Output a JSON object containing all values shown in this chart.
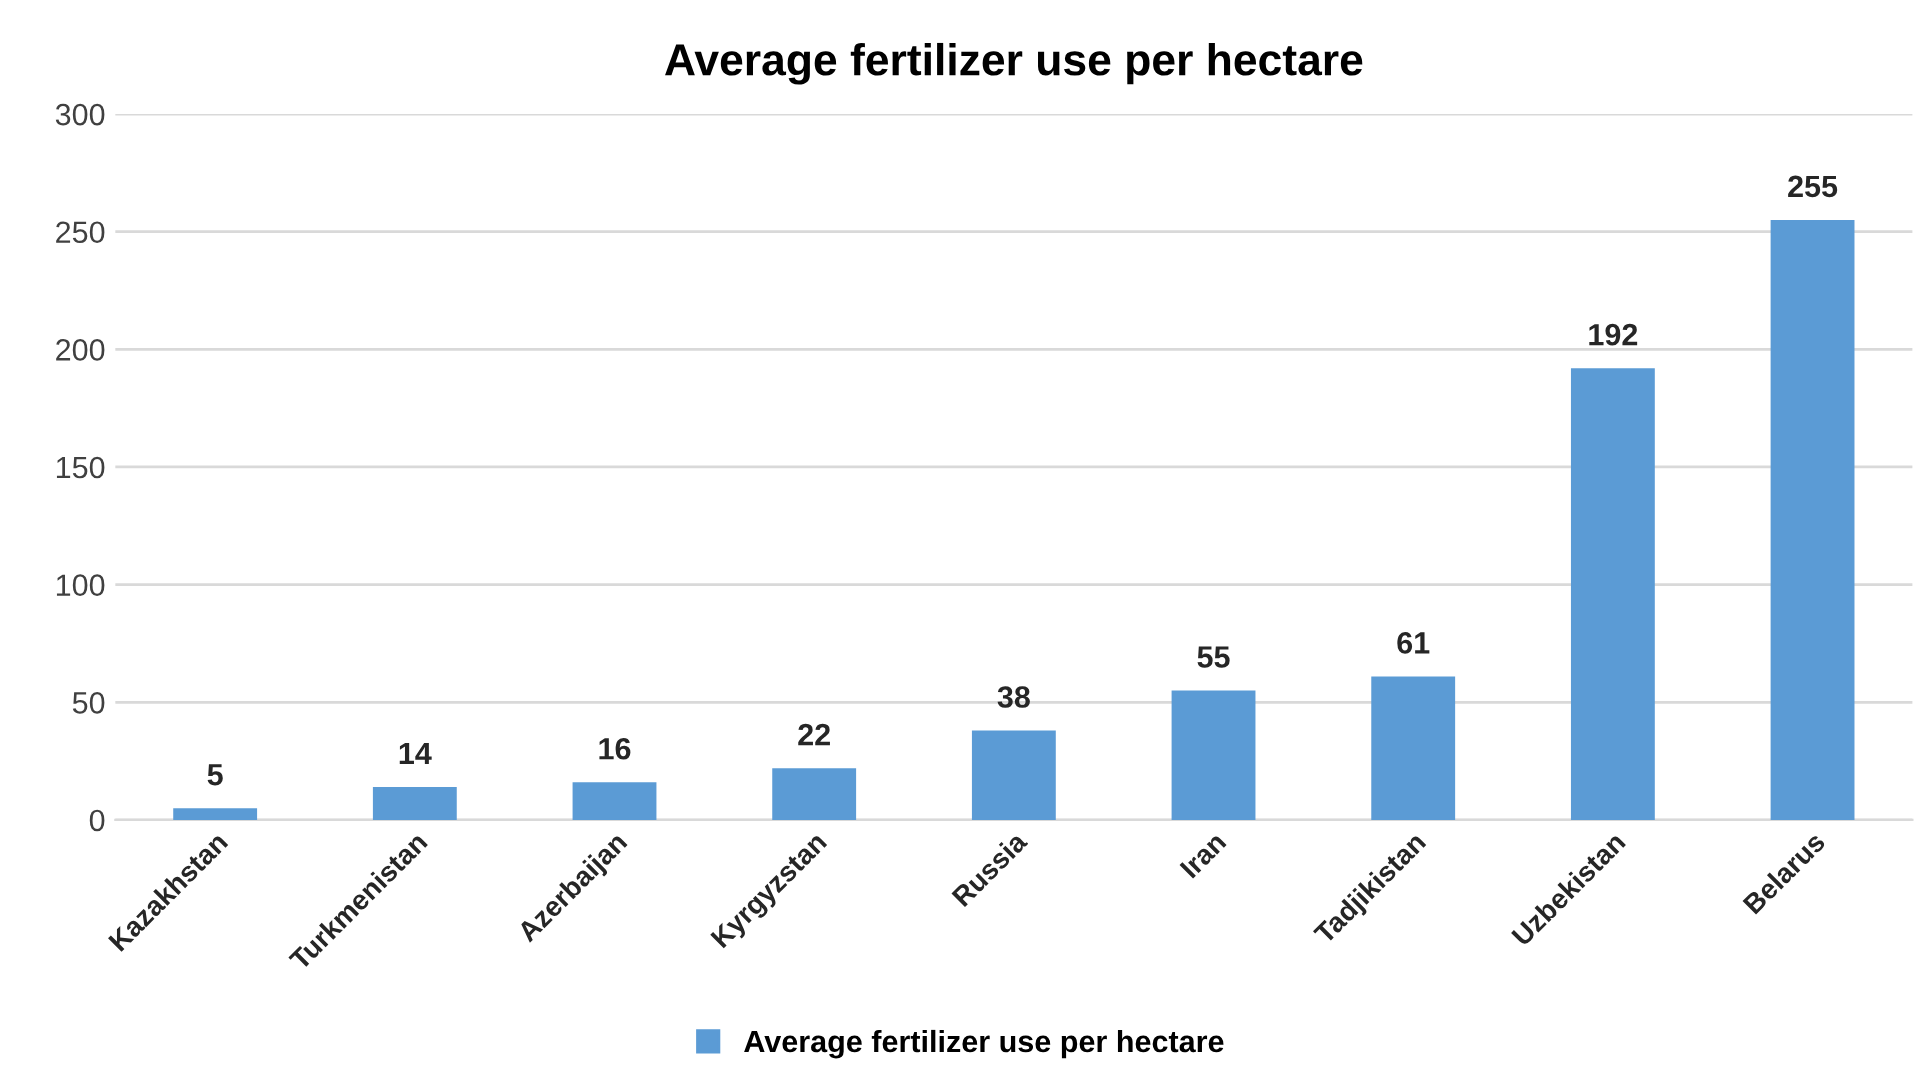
{
  "chart_data": {
    "type": "bar",
    "title": "Average fertilizer use per hectare",
    "categories": [
      "Kazakhstan",
      "Turkmenistan",
      "Azerbaijan",
      "Kyrgyzstan",
      "Russia",
      "Iran",
      "Tadjikistan",
      "Uzbekistan",
      "Belarus"
    ],
    "series": [
      {
        "name": "Average fertilizer use per hectare",
        "color": "#5b9bd5",
        "values": [
          5,
          14,
          16,
          22,
          38,
          55,
          61,
          192,
          255
        ]
      }
    ],
    "ylim": [
      0,
      300
    ],
    "yticks": [
      0,
      50,
      100,
      150,
      200,
      250,
      300
    ],
    "grid": "y",
    "legend": "bottom",
    "data_labels": true
  }
}
